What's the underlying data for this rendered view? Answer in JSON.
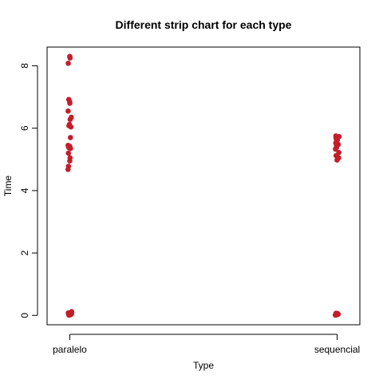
{
  "chart_data": {
    "type": "scatter",
    "title": "Different strip chart for each type",
    "xlabel": "Type",
    "ylabel": "Time",
    "categories": [
      "paralelo",
      "sequencial"
    ],
    "ylim": [
      -0.3,
      8.6
    ],
    "yticks": [
      0,
      2,
      4,
      6,
      8
    ],
    "point_color": "#C41E2A",
    "series": [
      {
        "category": "paralelo",
        "values": [
          8.3,
          8.25,
          8.08,
          6.92,
          6.86,
          6.8,
          6.55,
          6.35,
          6.28,
          6.12,
          6.08,
          6.04,
          5.7,
          5.45,
          5.42,
          5.38,
          5.35,
          5.2,
          5.05,
          4.95,
          4.78,
          4.68,
          0.12,
          0.1,
          0.08,
          0.06,
          0.05,
          0.04,
          0.03,
          0.02,
          0.02,
          0.01
        ]
      },
      {
        "category": "sequencial",
        "values": [
          5.75,
          5.73,
          5.71,
          5.68,
          5.62,
          5.58,
          5.52,
          5.48,
          5.42,
          5.38,
          5.33,
          5.22,
          5.12,
          5.05,
          4.98,
          0.07,
          0.06,
          0.05,
          0.04,
          0.03,
          0.03,
          0.02,
          0.02,
          0.01,
          0.01
        ]
      }
    ]
  }
}
